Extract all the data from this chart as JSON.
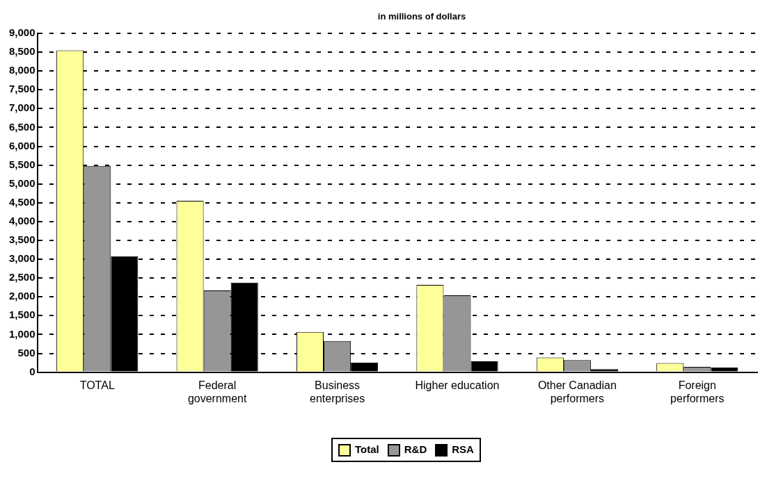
{
  "chart_data": {
    "type": "bar",
    "title": "in millions of dollars",
    "categories": [
      [
        "TOTAL"
      ],
      [
        "Federal",
        "government"
      ],
      [
        "Business",
        "enterprises"
      ],
      [
        "Higher education"
      ],
      [
        "Other Canadian",
        "performers"
      ],
      [
        "Foreign",
        "performers"
      ]
    ],
    "series": [
      {
        "name": "Total",
        "color": "#ffff99",
        "values": [
          8550,
          4550,
          1070,
          2320,
          390,
          240
        ]
      },
      {
        "name": "R&D",
        "color": "#969696",
        "values": [
          5480,
          2170,
          830,
          2040,
          320,
          140
        ]
      },
      {
        "name": "RSA",
        "color": "#000000",
        "values": [
          3080,
          2380,
          250,
          290,
          80,
          120
        ]
      }
    ],
    "ylim": [
      0,
      9000
    ],
    "yticks": [
      {
        "value": 0,
        "label": "0"
      },
      {
        "value": 500,
        "label": "500"
      },
      {
        "value": 1000,
        "label": "1,000"
      },
      {
        "value": 1500,
        "label": "1,500"
      },
      {
        "value": 2000,
        "label": "2,000"
      },
      {
        "value": 2500,
        "label": "2,500"
      },
      {
        "value": 3000,
        "label": "3,000"
      },
      {
        "value": 3500,
        "label": "3,500"
      },
      {
        "value": 4000,
        "label": "4,000"
      },
      {
        "value": 4500,
        "label": "4,500"
      },
      {
        "value": 5000,
        "label": "5,000"
      },
      {
        "value": 5500,
        "label": "5,500"
      },
      {
        "value": 6000,
        "label": "6,000"
      },
      {
        "value": 6500,
        "label": "6,500"
      },
      {
        "value": 7000,
        "label": "7,000"
      },
      {
        "value": 7500,
        "label": "7,500"
      },
      {
        "value": 8000,
        "label": "8,000"
      },
      {
        "value": 8500,
        "label": "8,500"
      },
      {
        "value": 9000,
        "label": "9,000"
      }
    ],
    "grid": "y",
    "legend": "bottom"
  }
}
